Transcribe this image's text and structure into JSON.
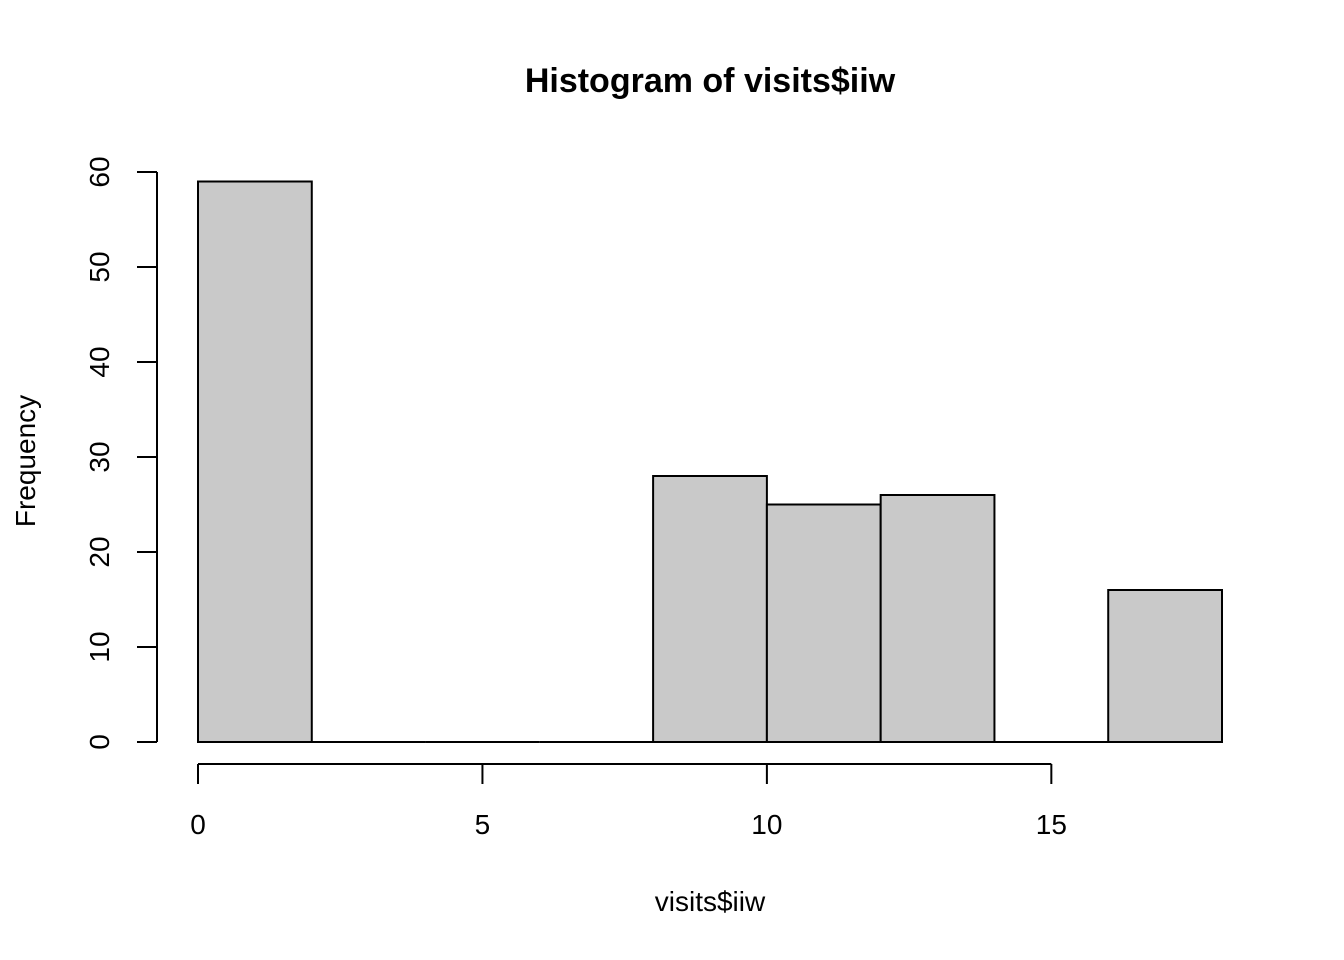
{
  "chart_data": {
    "type": "bar",
    "title": "Histogram of visits$iiw",
    "xlabel": "visits$iiw",
    "ylabel": "Frequency",
    "bins": [
      {
        "x0": 0,
        "x1": 2,
        "count": 59
      },
      {
        "x0": 2,
        "x1": 4,
        "count": 0
      },
      {
        "x0": 4,
        "x1": 6,
        "count": 0
      },
      {
        "x0": 6,
        "x1": 8,
        "count": 0
      },
      {
        "x0": 8,
        "x1": 10,
        "count": 28
      },
      {
        "x0": 10,
        "x1": 12,
        "count": 25
      },
      {
        "x0": 12,
        "x1": 14,
        "count": 26
      },
      {
        "x0": 14,
        "x1": 16,
        "count": 0
      },
      {
        "x0": 16,
        "x1": 18,
        "count": 16
      }
    ],
    "xticks": [
      0,
      5,
      10,
      15
    ],
    "yticks": [
      0,
      10,
      20,
      30,
      40,
      50,
      60
    ],
    "xlim": [
      0,
      18
    ],
    "ylim": [
      0,
      60
    ],
    "bar_color": "#c9c9c9",
    "grid": false,
    "legend": "none"
  }
}
